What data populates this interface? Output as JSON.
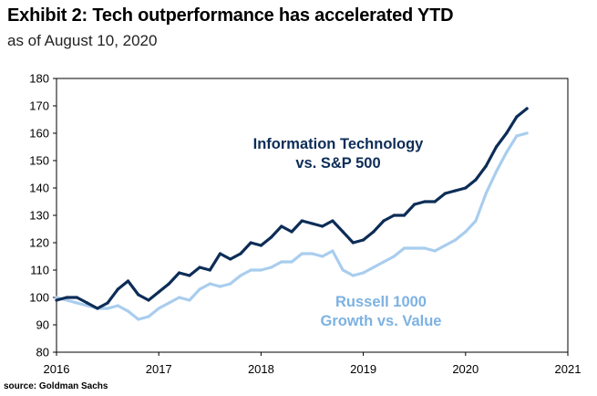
{
  "title": "Exhibit 2: Tech outperformance has accelerated YTD",
  "subtitle": "as of August 10, 2020",
  "source": "source: Goldman Sachs",
  "colors": {
    "it_series": "#0d2d57",
    "growth_series": "#a9cdee",
    "axis": "#000000"
  },
  "chart_data": {
    "type": "line",
    "xlim": [
      2016,
      2021
    ],
    "ylim": [
      80,
      180
    ],
    "x_ticks": [
      "2016",
      "2017",
      "2018",
      "2019",
      "2020",
      "2021"
    ],
    "y_ticks": [
      "80",
      "90",
      "100",
      "110",
      "120",
      "130",
      "140",
      "150",
      "160",
      "170",
      "180"
    ],
    "grid": false,
    "annotations": [
      {
        "lines": [
          "Information Technology",
          "vs. S&P 500"
        ],
        "color": "#0d2d57"
      },
      {
        "lines": [
          "Russell 1000",
          "Growth vs. Value"
        ],
        "color": "#7db2e2"
      }
    ],
    "series": [
      {
        "key": "it",
        "color": "#0d2d57",
        "x": [
          2016.0,
          2016.1,
          2016.2,
          2016.3,
          2016.4,
          2016.5,
          2016.6,
          2016.7,
          2016.8,
          2016.9,
          2017.0,
          2017.1,
          2017.2,
          2017.3,
          2017.4,
          2017.5,
          2017.6,
          2017.7,
          2017.8,
          2017.9,
          2018.0,
          2018.1,
          2018.2,
          2018.3,
          2018.4,
          2018.5,
          2018.6,
          2018.7,
          2018.8,
          2018.9,
          2019.0,
          2019.1,
          2019.2,
          2019.3,
          2019.4,
          2019.5,
          2019.6,
          2019.7,
          2019.8,
          2019.9,
          2020.0,
          2020.1,
          2020.2,
          2020.3,
          2020.4,
          2020.5,
          2020.6
        ],
        "values": [
          99,
          100,
          100,
          98,
          96,
          98,
          103,
          106,
          101,
          99,
          102,
          105,
          109,
          108,
          111,
          110,
          116,
          114,
          116,
          120,
          119,
          122,
          126,
          124,
          128,
          127,
          126,
          128,
          124,
          120,
          121,
          124,
          128,
          130,
          130,
          134,
          135,
          135,
          138,
          139,
          140,
          143,
          148,
          155,
          160,
          166,
          169
        ]
      },
      {
        "key": "growth",
        "color": "#a9cdee",
        "x": [
          2016.0,
          2016.1,
          2016.2,
          2016.3,
          2016.4,
          2016.5,
          2016.6,
          2016.7,
          2016.8,
          2016.9,
          2017.0,
          2017.1,
          2017.2,
          2017.3,
          2017.4,
          2017.5,
          2017.6,
          2017.7,
          2017.8,
          2017.9,
          2018.0,
          2018.1,
          2018.2,
          2018.3,
          2018.4,
          2018.5,
          2018.6,
          2018.7,
          2018.8,
          2018.9,
          2019.0,
          2019.1,
          2019.2,
          2019.3,
          2019.4,
          2019.5,
          2019.6,
          2019.7,
          2019.8,
          2019.9,
          2020.0,
          2020.1,
          2020.2,
          2020.3,
          2020.4,
          2020.5,
          2020.6
        ],
        "values": [
          100,
          99,
          98,
          97,
          96,
          96,
          97,
          95,
          92,
          93,
          96,
          98,
          100,
          99,
          103,
          105,
          104,
          105,
          108,
          110,
          110,
          111,
          113,
          113,
          116,
          116,
          115,
          117,
          110,
          108,
          109,
          111,
          113,
          115,
          118,
          118,
          118,
          117,
          119,
          121,
          124,
          128,
          138,
          146,
          153,
          159,
          160
        ]
      }
    ]
  }
}
